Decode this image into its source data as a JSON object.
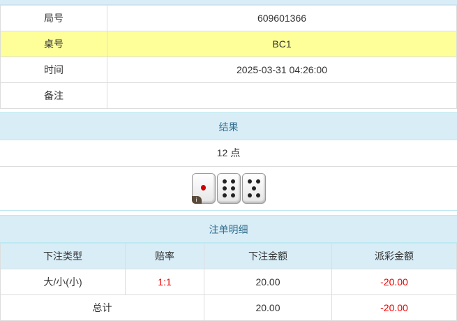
{
  "info": [
    {
      "label": "局号",
      "value": "609601366"
    },
    {
      "label": "桌号",
      "value": "BC1"
    },
    {
      "label": "时间",
      "value": "2025-03-31 04:26:00"
    },
    {
      "label": "备注",
      "value": ""
    }
  ],
  "result": {
    "title": "结果",
    "points": "12 点",
    "dice": [
      1,
      6,
      5
    ],
    "badge": "i"
  },
  "bets": {
    "title": "注单明细",
    "headers": [
      "下注类型",
      "赔率",
      "下注金额",
      "派彩金额"
    ],
    "rows": [
      {
        "type": "大/小(小)",
        "odds": "1:1",
        "amount": "20.00",
        "payout": "-20.00"
      }
    ],
    "total": {
      "label": "总计",
      "amount": "20.00",
      "payout": "-20.00"
    }
  },
  "colors": {
    "highlight": "#ffff99",
    "header": "#d9edf7",
    "negative": "#ee0000"
  }
}
